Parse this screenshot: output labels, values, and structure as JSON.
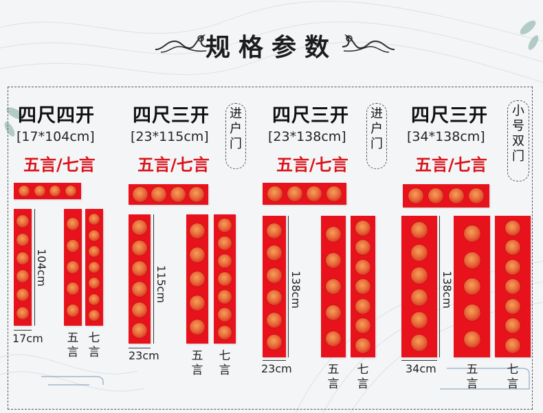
{
  "page": {
    "title": "规格参数"
  },
  "colors": {
    "couplet_red": "#e8121c",
    "style_text_red": "#d9141b",
    "background": "#f4f5f7"
  },
  "specs": [
    {
      "name": "四尺四开",
      "size": "[17*104cm]",
      "style": "五言/七言",
      "tag": [],
      "height_label": "104cm",
      "width_label": "17cm",
      "col_a": [
        "五",
        "言"
      ],
      "col_b": [
        "七",
        "言"
      ]
    },
    {
      "name": "四尺三开",
      "size": "[23*115cm]",
      "style": "五言/七言",
      "tag": [
        "进",
        "户",
        "门"
      ],
      "height_label": "115cm",
      "width_label": "23cm",
      "col_a": [
        "五",
        "言"
      ],
      "col_b": [
        "七",
        "言"
      ]
    },
    {
      "name": "四尺三开",
      "size": "[23*138cm]",
      "style": "五言/七言",
      "tag": [
        "进",
        "户",
        "门"
      ],
      "height_label": "138cm",
      "width_label": "23cm",
      "col_a": [
        "五",
        "言"
      ],
      "col_b": [
        "七",
        "言"
      ]
    },
    {
      "name": "四尺三开",
      "size": "[34*138cm]",
      "style": "五言/七言",
      "tag": [
        "小",
        "号",
        "双",
        "门"
      ],
      "height_label": "138cm",
      "width_label": "34cm",
      "col_a": [
        "五",
        "言"
      ],
      "col_b": [
        "七",
        "言"
      ]
    }
  ]
}
